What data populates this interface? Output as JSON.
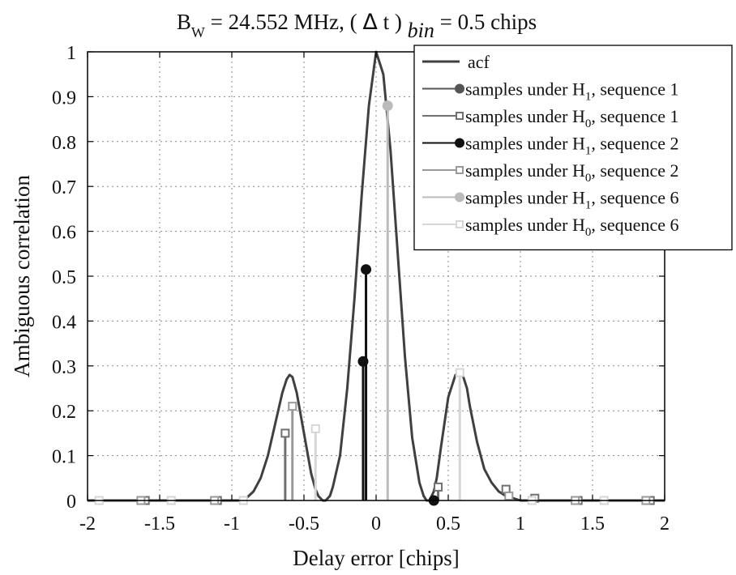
{
  "chart_data": {
    "type": "line",
    "title": {
      "parts": [
        {
          "text": "B"
        },
        {
          "text": "W",
          "sub": true
        },
        {
          "text": " = 24.552 MHz,    ( "
        },
        {
          "text": "Δ",
          "symbol": true
        },
        {
          "text": " t ) "
        },
        {
          "text": "bin",
          "sub": true,
          "italic": true
        },
        {
          "text": " = 0.5 chips"
        }
      ]
    },
    "xlabel": "Delay error [chips]",
    "ylabel": "Ambiguous correlation",
    "xlim": [
      -2,
      2
    ],
    "ylim": [
      0,
      1
    ],
    "xticks": [
      -2,
      -1.5,
      -1,
      -0.5,
      0,
      0.5,
      1,
      1.5,
      2
    ],
    "xtick_labels": [
      "-2",
      "-1.5",
      "-1",
      "-0.5",
      "0",
      "0.5",
      "1",
      "1.5",
      "2"
    ],
    "yticks": [
      0,
      0.1,
      0.2,
      0.3,
      0.4,
      0.5,
      0.6,
      0.7,
      0.8,
      0.9,
      1
    ],
    "ytick_labels": [
      "0",
      "0.1",
      "0.2",
      "0.3",
      "0.4",
      "0.5",
      "0.6",
      "0.7",
      "0.8",
      "0.9",
      "1"
    ],
    "grid": true,
    "legend_position": "top-right",
    "series": [
      {
        "name": "acf",
        "kind": "line",
        "color": "#404040",
        "x": [
          -2.0,
          -1.0,
          -0.95,
          -0.9,
          -0.85,
          -0.8,
          -0.75,
          -0.7,
          -0.65,
          -0.62,
          -0.6,
          -0.58,
          -0.55,
          -0.5,
          -0.45,
          -0.42,
          -0.4,
          -0.37,
          -0.35,
          -0.32,
          -0.3,
          -0.25,
          -0.2,
          -0.15,
          -0.1,
          -0.05,
          0.0,
          0.05,
          0.1,
          0.15,
          0.2,
          0.25,
          0.3,
          0.33,
          0.35,
          0.37,
          0.4,
          0.42,
          0.45,
          0.5,
          0.55,
          0.58,
          0.6,
          0.63,
          0.65,
          0.7,
          0.75,
          0.8,
          0.85,
          0.9,
          0.95,
          1.0,
          2.0
        ],
        "y": [
          0,
          0,
          0,
          0.005,
          0.02,
          0.05,
          0.1,
          0.17,
          0.24,
          0.27,
          0.28,
          0.275,
          0.24,
          0.15,
          0.06,
          0.025,
          0.01,
          0,
          0,
          0.01,
          0.03,
          0.1,
          0.25,
          0.45,
          0.68,
          0.88,
          1.0,
          0.95,
          0.78,
          0.55,
          0.32,
          0.14,
          0.04,
          0.01,
          0,
          0,
          0.02,
          0.05,
          0.12,
          0.23,
          0.28,
          0.285,
          0.28,
          0.25,
          0.21,
          0.13,
          0.07,
          0.04,
          0.02,
          0.01,
          0.005,
          0,
          0
        ]
      },
      {
        "name": "samples under H1, sequence 1",
        "legend_main": "samples under H",
        "legend_sub": "1",
        "legend_rest": ", sequence 1",
        "kind": "stem",
        "marker": "circle",
        "color": "#555555",
        "x": [],
        "y": []
      },
      {
        "name": "samples under H0, sequence 1",
        "legend_main": "samples under H",
        "legend_sub": "0",
        "legend_rest": ", sequence 1",
        "kind": "stem",
        "marker": "square",
        "color": "#707070",
        "x": [
          -1.6,
          -1.1,
          -0.63,
          0.43,
          0.9,
          1.1,
          1.4,
          1.9
        ],
        "y": [
          0,
          0,
          0.15,
          0.03,
          0.025,
          0.005,
          0,
          0
        ]
      },
      {
        "name": "samples under H1, sequence 2",
        "legend_main": "samples under H",
        "legend_sub": "1",
        "legend_rest": ", sequence 2",
        "kind": "stem",
        "marker": "circle",
        "color": "#111111",
        "x": [
          -0.09,
          -0.07,
          0.4
        ],
        "y": [
          0.31,
          0.515,
          0
        ]
      },
      {
        "name": "samples under H0, sequence 2",
        "legend_main": "samples under H",
        "legend_sub": "0",
        "legend_rest": ", sequence 2",
        "kind": "stem",
        "marker": "square",
        "color": "#999999",
        "x": [
          -1.63,
          -1.12,
          -0.58,
          0.92,
          1.38,
          1.87
        ],
        "y": [
          0,
          0,
          0.21,
          0.01,
          0,
          0
        ]
      },
      {
        "name": "samples under H1, sequence 6",
        "legend_main": "samples under H",
        "legend_sub": "1",
        "legend_rest": ", sequence 6",
        "kind": "stem",
        "marker": "circle",
        "color": "#bbbbbb",
        "x": [
          0.08
        ],
        "y": [
          0.88
        ]
      },
      {
        "name": "samples under H0, sequence 6",
        "legend_main": "samples under H",
        "legend_sub": "0",
        "legend_rest": ", sequence 6",
        "kind": "stem",
        "marker": "square",
        "color": "#d6d6d6",
        "x": [
          -1.92,
          -1.42,
          -0.92,
          -0.42,
          0.58,
          1.08,
          1.58
        ],
        "y": [
          0,
          0,
          0,
          0.16,
          0.285,
          0,
          0
        ]
      }
    ]
  }
}
